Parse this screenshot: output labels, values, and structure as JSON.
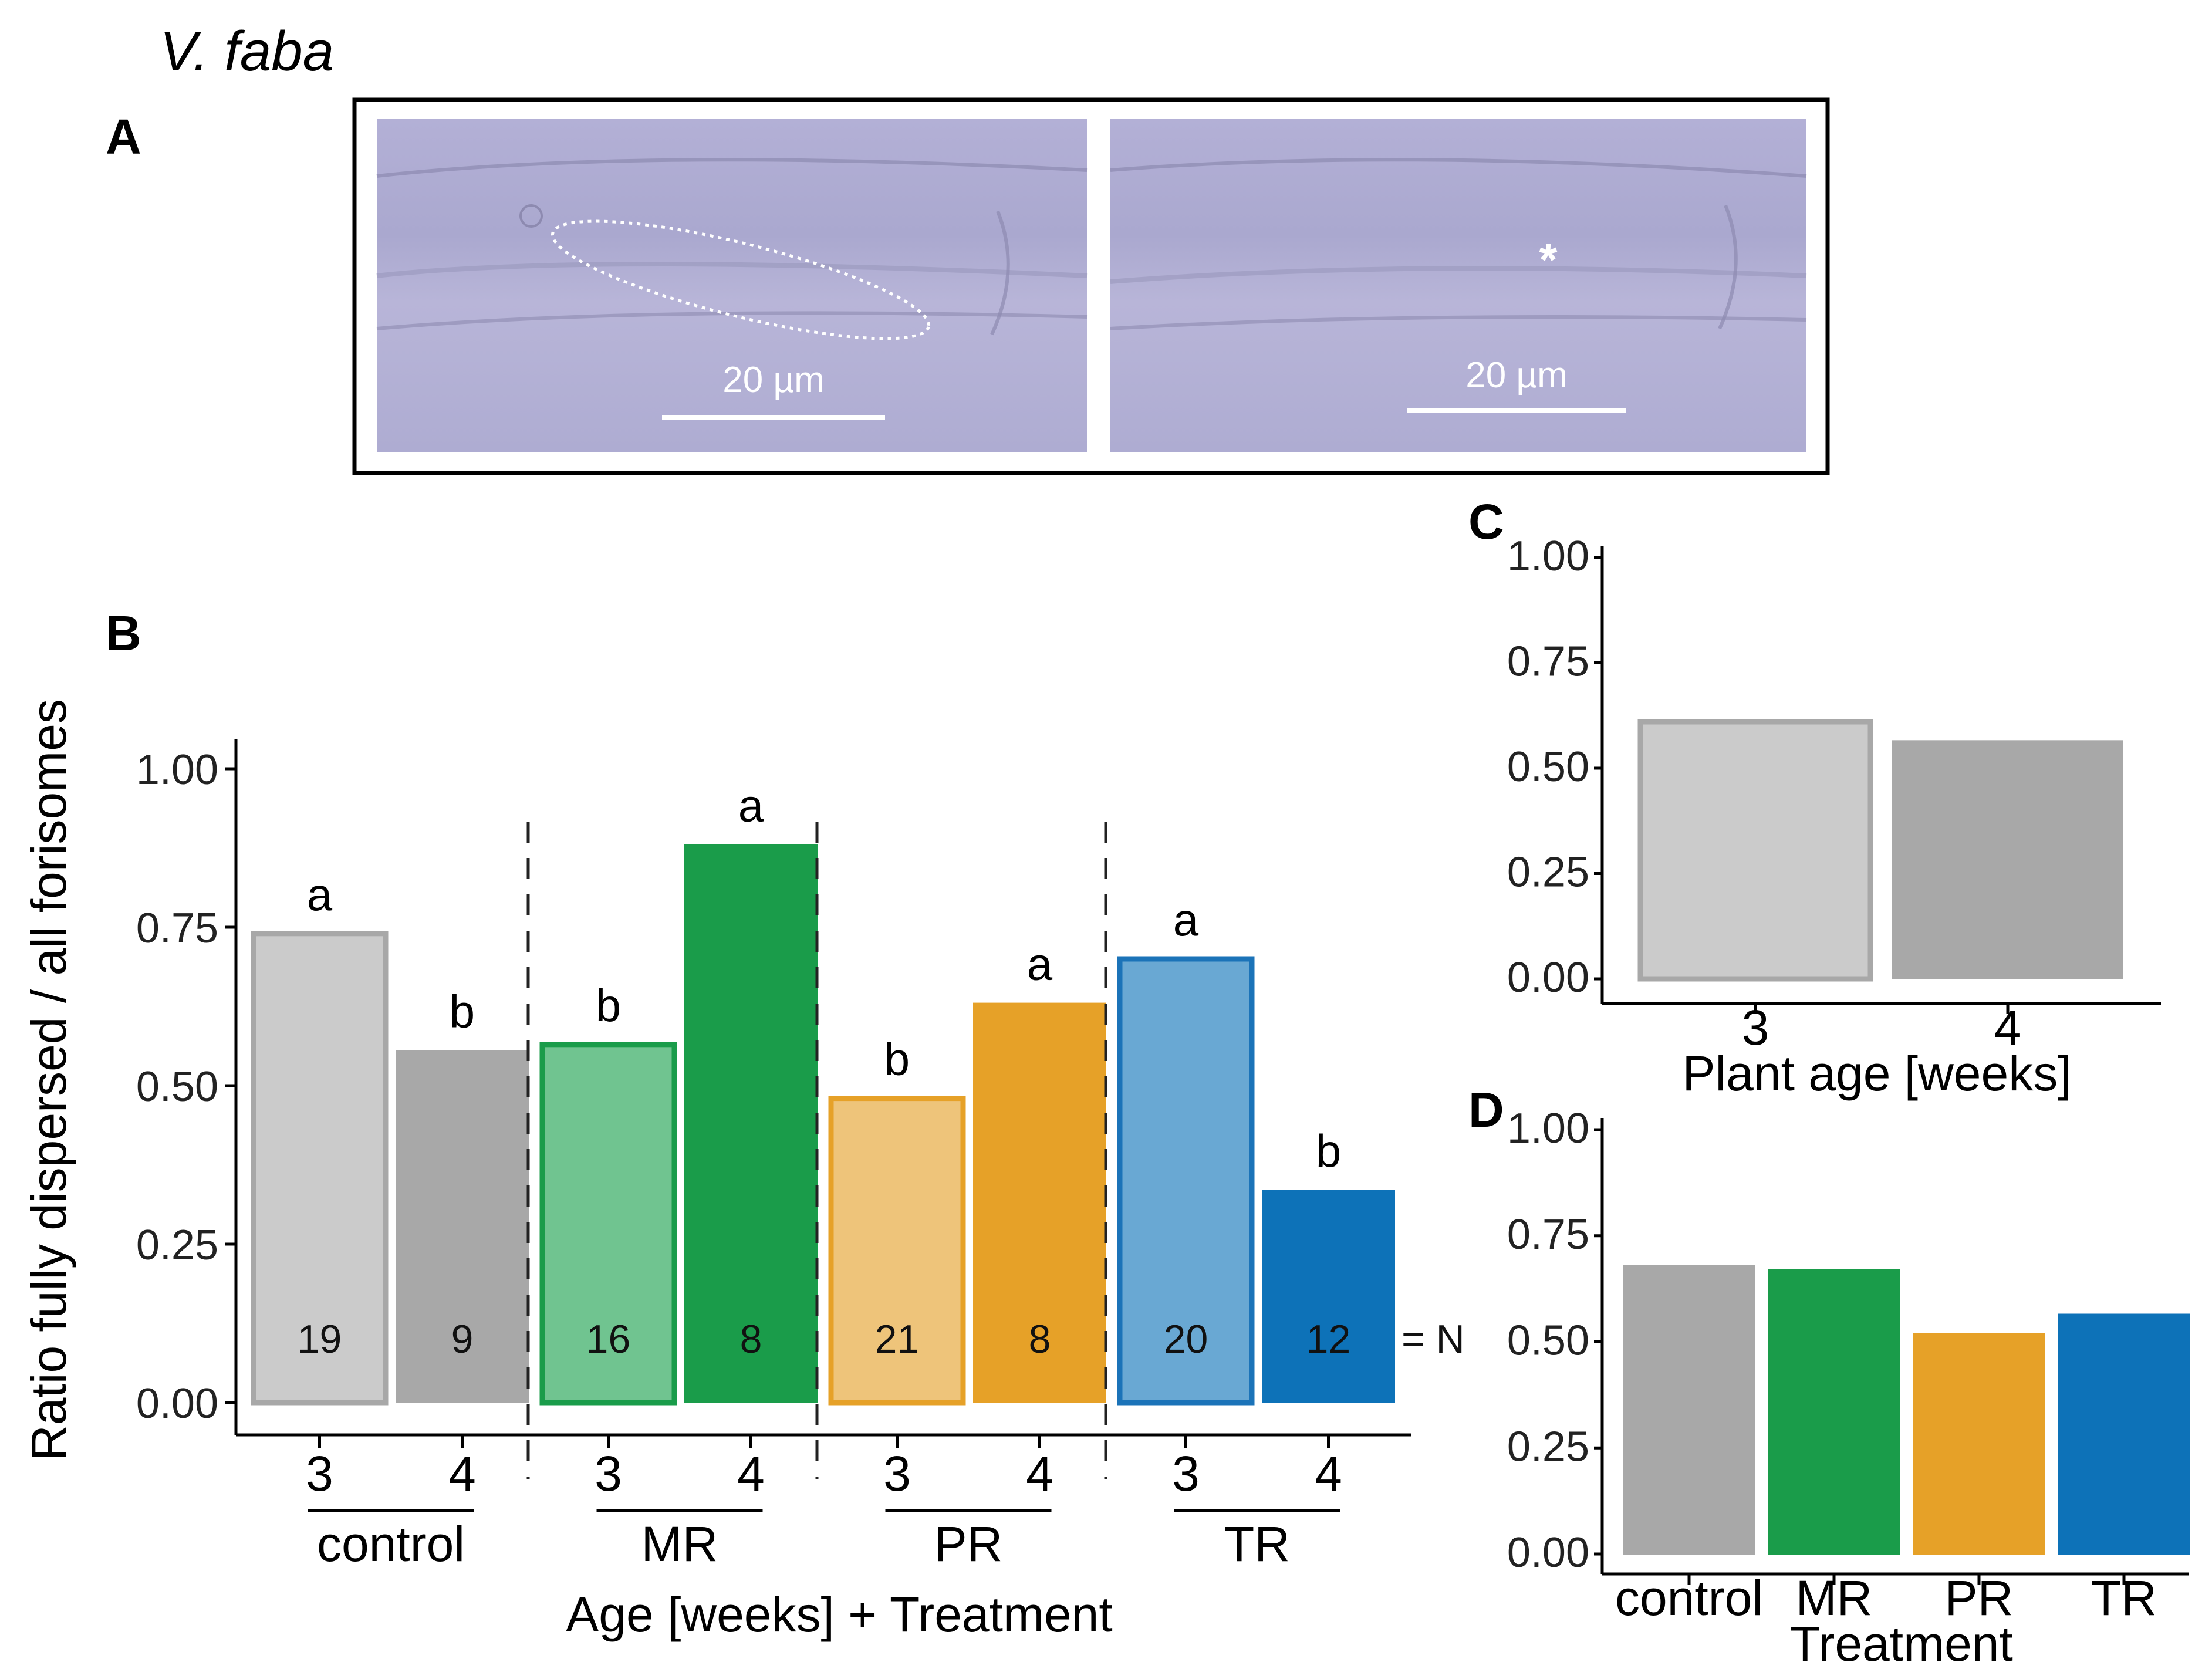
{
  "figure": {
    "species_label": "V. faba",
    "panel_labels": [
      "A",
      "B",
      "C",
      "D"
    ],
    "colors": {
      "control_3": "#cbcbcb",
      "control_3_border": "#a8a8a8",
      "control_4": "#a8a8a8",
      "MR_3": "#70c490",
      "MR_3_border": "#1a9c4a",
      "MR_4": "#1a9c4a",
      "PR_3": "#eec47a",
      "PR_3_border": "#e6a128",
      "PR_4": "#e6a128",
      "TR_3": "#69a8d3",
      "TR_3_border": "#1b73b8",
      "TR_4": "#0d72b8"
    }
  },
  "micrograph": {
    "left_scale_label": "20 µm",
    "right_scale_label": "20 µm",
    "marker": "*"
  },
  "chart_data": [
    {
      "id": "B",
      "type": "bar",
      "ylabel": "Ratio fully dispersed / all forisomes",
      "xlabel": "Age [weeks] + Treatment",
      "ylim": [
        0,
        1
      ],
      "yticks": [
        "0.00",
        "0.25",
        "0.50",
        "0.75",
        "1.00"
      ],
      "groups": [
        "control",
        "MR",
        "PR",
        "TR"
      ],
      "n_suffix": "= N",
      "bars": [
        {
          "group": "control",
          "age": "3",
          "value": 0.74,
          "n": "19",
          "sig": "a",
          "style": "light",
          "color_key": "control_3"
        },
        {
          "group": "control",
          "age": "4",
          "value": 0.555,
          "n": "9",
          "sig": "b",
          "style": "dark",
          "color_key": "control_4"
        },
        {
          "group": "MR",
          "age": "3",
          "value": 0.565,
          "n": "16",
          "sig": "b",
          "style": "light",
          "color_key": "MR_3"
        },
        {
          "group": "MR",
          "age": "4",
          "value": 0.88,
          "n": "8",
          "sig": "a",
          "style": "dark",
          "color_key": "MR_4"
        },
        {
          "group": "PR",
          "age": "3",
          "value": 0.48,
          "n": "21",
          "sig": "b",
          "style": "light",
          "color_key": "PR_3"
        },
        {
          "group": "PR",
          "age": "4",
          "value": 0.63,
          "n": "8",
          "sig": "a",
          "style": "dark",
          "color_key": "PR_4"
        },
        {
          "group": "TR",
          "age": "3",
          "value": 0.7,
          "n": "20",
          "sig": "a",
          "style": "light",
          "color_key": "TR_3"
        },
        {
          "group": "TR",
          "age": "4",
          "value": 0.335,
          "n": "12",
          "sig": "b",
          "style": "dark",
          "color_key": "TR_4"
        }
      ]
    },
    {
      "id": "C",
      "type": "bar",
      "xlabel": "Plant age [weeks]",
      "ylim": [
        0,
        1
      ],
      "yticks": [
        "0.00",
        "0.25",
        "0.50",
        "0.75",
        "1.00"
      ],
      "categories": [
        "3",
        "4"
      ],
      "values": [
        0.61,
        0.565
      ],
      "color_keys": [
        "control_3",
        "control_4"
      ],
      "styles": [
        "light",
        "dark"
      ]
    },
    {
      "id": "D",
      "type": "bar",
      "xlabel": "Treatment",
      "ylim": [
        0,
        1
      ],
      "yticks": [
        "0.00",
        "0.25",
        "0.50",
        "0.75",
        "1.00"
      ],
      "categories": [
        "control",
        "MR",
        "PR",
        "TR"
      ],
      "values": [
        0.68,
        0.67,
        0.52,
        0.565
      ],
      "color_keys": [
        "control_4",
        "MR_4",
        "PR_4",
        "TR_4"
      ],
      "styles": [
        "dark",
        "dark",
        "dark",
        "dark"
      ]
    }
  ]
}
